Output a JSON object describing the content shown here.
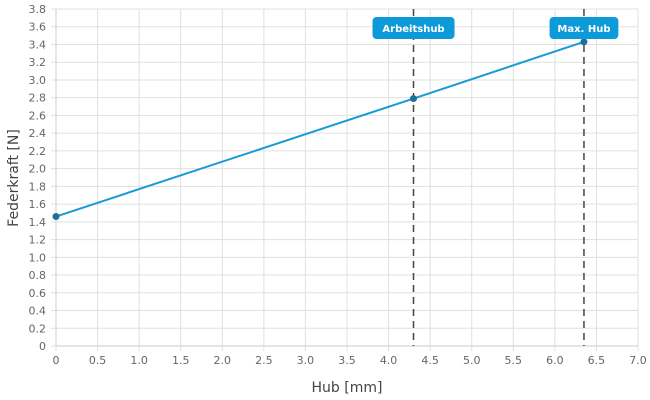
{
  "chart_data": {
    "type": "line",
    "title": "",
    "xlabel": "Hub [mm]",
    "ylabel": "Federkraft [N]",
    "xlim": [
      0,
      7.0
    ],
    "ylim": [
      0,
      3.8
    ],
    "x_ticks": [
      "0",
      "0.5",
      "1.0",
      "1.5",
      "2.0",
      "2.5",
      "3.0",
      "3.5",
      "4.0",
      "4.5",
      "5.0",
      "5.5",
      "6.0",
      "6.5",
      "7.0"
    ],
    "y_ticks": [
      "0",
      "0.2",
      "0.4",
      "0.6",
      "0.8",
      "1.0",
      "1.2",
      "1.4",
      "1.6",
      "1.8",
      "2.0",
      "2.2",
      "2.4",
      "2.6",
      "2.8",
      "3.0",
      "3.2",
      "3.4",
      "3.6",
      "3.8"
    ],
    "grid": true,
    "series": [
      {
        "x": [
          0,
          4.3,
          6.35
        ],
        "y": [
          1.46,
          2.79,
          3.43
        ],
        "color": "#1a9ad6",
        "marker_color": "#1f6f9a"
      }
    ],
    "annotations": [
      {
        "label": "Arbeitshub",
        "x": 4.3
      },
      {
        "label": "Max. Hub",
        "x": 6.35
      }
    ],
    "annotation_color": "#0d9ad8"
  }
}
